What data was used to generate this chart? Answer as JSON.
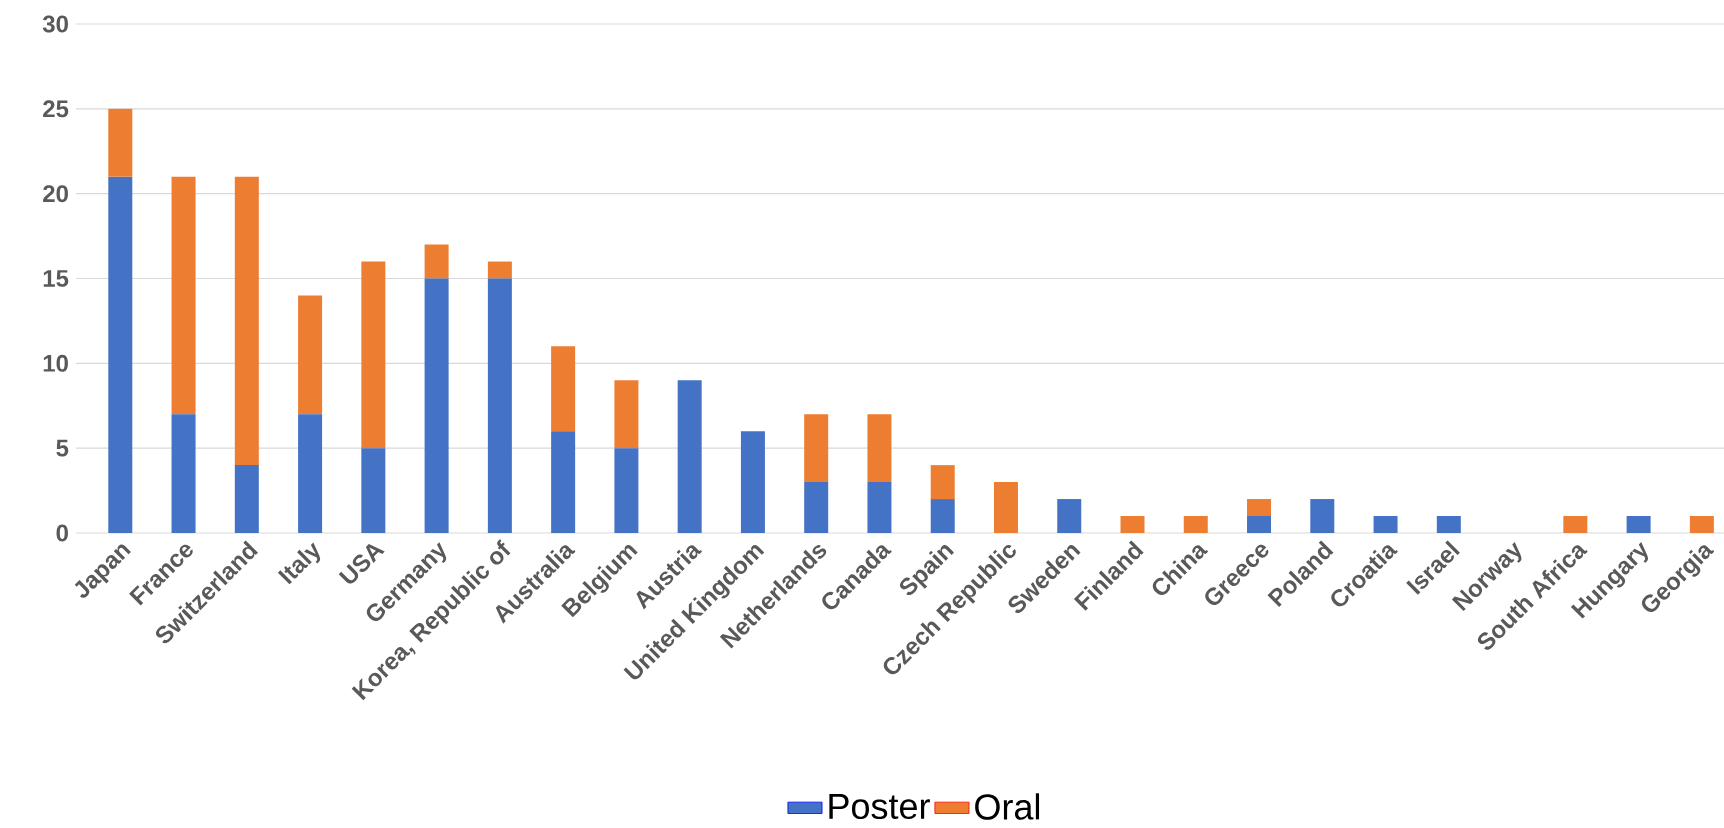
{
  "chart_data": {
    "type": "bar",
    "stacked": true,
    "categories": [
      "Japan",
      "France",
      "Switzerland",
      "Italy",
      "USA",
      "Germany",
      "Korea, Republic of",
      "Australia",
      "Belgium",
      "Austria",
      "United Kingdom",
      "Netherlands",
      "Canada",
      "Spain",
      "Czech Republic",
      "Sweden",
      "Finland",
      "China",
      "Greece",
      "Poland",
      "Croatia",
      "Israel",
      "Norway",
      "South Africa",
      "Hungary",
      "Georgia"
    ],
    "series": [
      {
        "name": "Poster",
        "color": "#4472c4",
        "values": [
          21,
          7,
          4,
          7,
          5,
          15,
          15,
          6,
          5,
          9,
          6,
          3,
          3,
          2,
          0,
          2,
          0,
          0,
          1,
          2,
          1,
          1,
          0,
          0,
          1,
          0
        ]
      },
      {
        "name": "Oral",
        "color": "#ed7d31",
        "values": [
          4,
          14,
          17,
          7,
          11,
          2,
          1,
          5,
          4,
          0,
          0,
          4,
          4,
          2,
          3,
          0,
          1,
          1,
          1,
          0,
          0,
          0,
          0,
          1,
          0,
          1
        ]
      }
    ],
    "ylim": [
      0,
      30
    ],
    "yticks": [
      0,
      5,
      10,
      15,
      20,
      25,
      30
    ],
    "grid": "y",
    "legend": "bottom"
  }
}
